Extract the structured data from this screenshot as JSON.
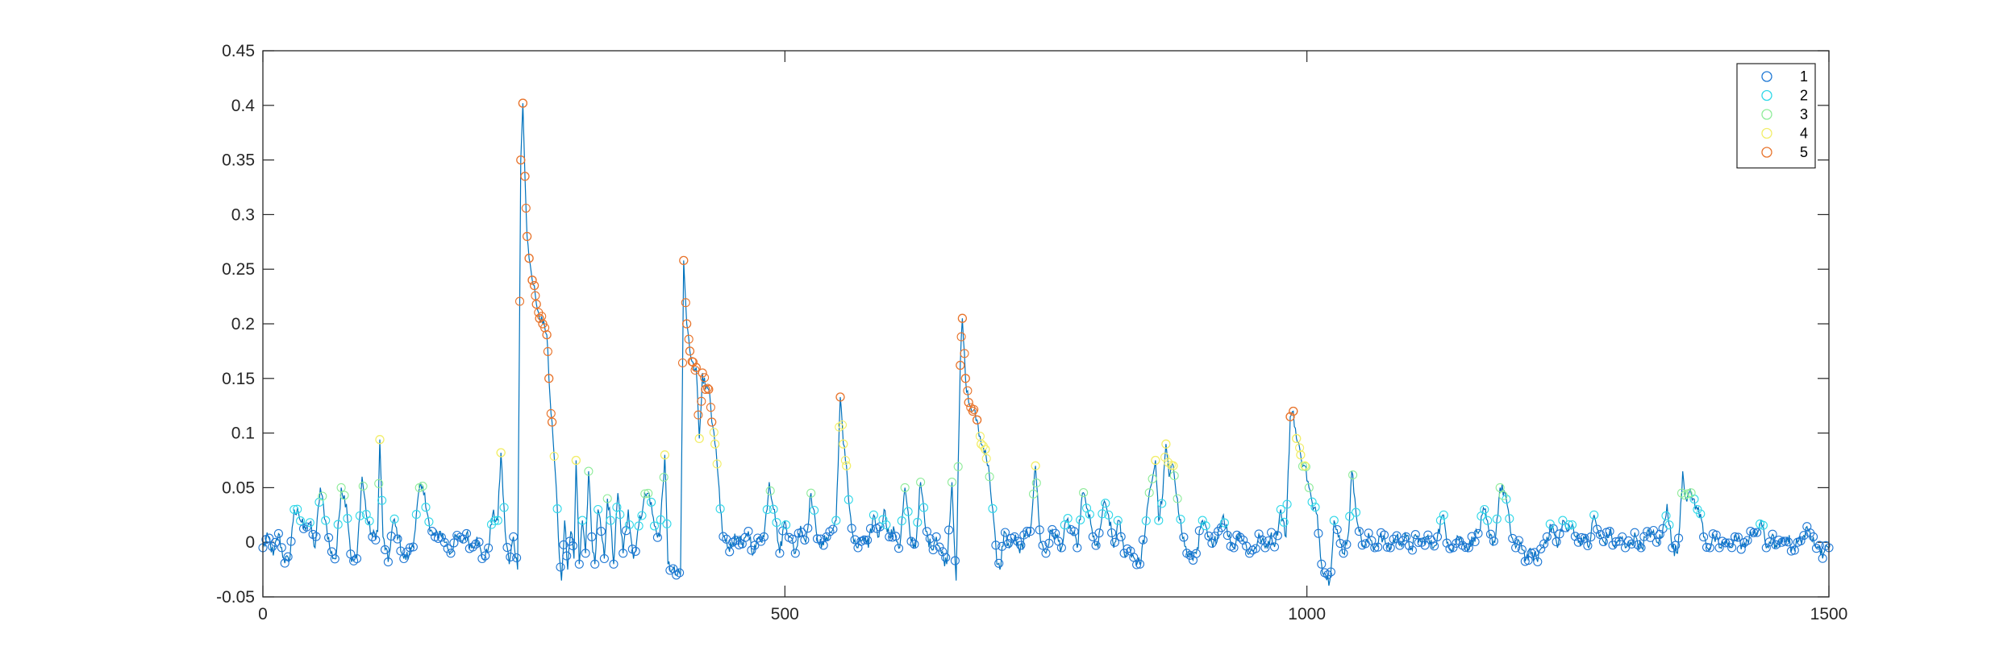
{
  "chart_data": {
    "type": "line",
    "title": "",
    "xlabel": "",
    "ylabel": "",
    "xlim": [
      0,
      1500
    ],
    "ylim": [
      -0.05,
      0.45
    ],
    "x_ticks": [
      0,
      500,
      1000,
      1500
    ],
    "x_tick_labels": [
      "0",
      "500",
      "1000",
      "1500"
    ],
    "y_ticks": [
      -0.05,
      0,
      0.05,
      0.1,
      0.15,
      0.2,
      0.25,
      0.3,
      0.35,
      0.4,
      0.45
    ],
    "y_tick_labels": [
      "-0.05",
      "0",
      "0.05",
      "0.1",
      "0.15",
      "0.2",
      "0.25",
      "0.3",
      "0.35",
      "0.4",
      "0.45"
    ],
    "grid": false,
    "legend_position": "top-right",
    "line_color": "#0072BD",
    "series": [
      {
        "name": "1",
        "marker": "circle",
        "color": "#1f78d4"
      },
      {
        "name": "2",
        "marker": "circle",
        "color": "#2fd8e8"
      },
      {
        "name": "3",
        "marker": "circle",
        "color": "#8fec9a"
      },
      {
        "name": "4",
        "marker": "circle",
        "color": "#f2ee6a"
      },
      {
        "name": "5",
        "marker": "circle",
        "color": "#e8742c"
      }
    ],
    "class_thresholds": [
      0.015,
      0.04,
      0.07,
      0.11
    ],
    "signal": [
      [
        0,
        -0.005
      ],
      [
        5,
        0.005
      ],
      [
        10,
        -0.012
      ],
      [
        15,
        0.008
      ],
      [
        20,
        -0.015
      ],
      [
        25,
        -0.018
      ],
      [
        30,
        0.03
      ],
      [
        35,
        0.022
      ],
      [
        40,
        0.015
      ],
      [
        45,
        0.018
      ],
      [
        50,
        -0.005
      ],
      [
        55,
        0.05
      ],
      [
        60,
        0.02
      ],
      [
        65,
        -0.01
      ],
      [
        70,
        -0.015
      ],
      [
        75,
        0.05
      ],
      [
        80,
        0.035
      ],
      [
        85,
        -0.018
      ],
      [
        90,
        -0.015
      ],
      [
        95,
        0.06
      ],
      [
        100,
        0.02
      ],
      [
        105,
        0.005
      ],
      [
        110,
        0.01
      ],
      [
        112,
        0.094
      ],
      [
        115,
        0.005
      ],
      [
        120,
        -0.018
      ],
      [
        125,
        0.02
      ],
      [
        130,
        0.005
      ],
      [
        135,
        -0.015
      ],
      [
        140,
        -0.012
      ],
      [
        145,
        0.005
      ],
      [
        150,
        0.05
      ],
      [
        155,
        0.045
      ],
      [
        160,
        0.01
      ],
      [
        165,
        0.005
      ],
      [
        170,
        0.01
      ],
      [
        175,
        0
      ],
      [
        180,
        -0.01
      ],
      [
        185,
        0.005
      ],
      [
        190,
        0
      ],
      [
        195,
        0.008
      ],
      [
        200,
        -0.005
      ],
      [
        205,
        0.005
      ],
      [
        210,
        -0.015
      ],
      [
        215,
        -0.01
      ],
      [
        220,
        0.025
      ],
      [
        225,
        0.02
      ],
      [
        228,
        0.082
      ],
      [
        232,
        0.01
      ],
      [
        236,
        -0.02
      ],
      [
        240,
        0.005
      ],
      [
        244,
        -0.025
      ],
      [
        247,
        0.35
      ],
      [
        249,
        0.402
      ],
      [
        251,
        0.335
      ],
      [
        253,
        0.28
      ],
      [
        255,
        0.26
      ],
      [
        258,
        0.24
      ],
      [
        260,
        0.235
      ],
      [
        262,
        0.218
      ],
      [
        265,
        0.205
      ],
      [
        268,
        0.2
      ],
      [
        272,
        0.19
      ],
      [
        274,
        0.15
      ],
      [
        277,
        0.11
      ],
      [
        280,
        0.065
      ],
      [
        283,
        0.005
      ],
      [
        286,
        -0.035
      ],
      [
        289,
        0.02
      ],
      [
        292,
        -0.025
      ],
      [
        295,
        0.01
      ],
      [
        298,
        -0.015
      ],
      [
        300,
        0.075
      ],
      [
        303,
        -0.02
      ],
      [
        306,
        0.02
      ],
      [
        309,
        -0.01
      ],
      [
        312,
        0.065
      ],
      [
        315,
        0.005
      ],
      [
        318,
        -0.02
      ],
      [
        321,
        0.03
      ],
      [
        324,
        0.01
      ],
      [
        327,
        -0.015
      ],
      [
        330,
        0.04
      ],
      [
        333,
        0.02
      ],
      [
        336,
        -0.02
      ],
      [
        340,
        0.045
      ],
      [
        345,
        -0.01
      ],
      [
        350,
        0.03
      ],
      [
        355,
        -0.015
      ],
      [
        360,
        0.015
      ],
      [
        365,
        0.04
      ],
      [
        370,
        0.045
      ],
      [
        375,
        0.015
      ],
      [
        380,
        0.005
      ],
      [
        385,
        0.08
      ],
      [
        388,
        -0.02
      ],
      [
        392,
        -0.025
      ],
      [
        396,
        -0.03
      ],
      [
        400,
        -0.03
      ],
      [
        403,
        0.258
      ],
      [
        406,
        0.2
      ],
      [
        409,
        0.175
      ],
      [
        412,
        0.165
      ],
      [
        415,
        0.16
      ],
      [
        418,
        0.095
      ],
      [
        421,
        0.155
      ],
      [
        424,
        0.14
      ],
      [
        427,
        0.14
      ],
      [
        430,
        0.11
      ],
      [
        433,
        0.09
      ],
      [
        436,
        0.06
      ],
      [
        440,
        0.01
      ],
      [
        445,
        -0.005
      ],
      [
        450,
        0
      ],
      [
        455,
        0.005
      ],
      [
        460,
        -0.005
      ],
      [
        465,
        0.01
      ],
      [
        470,
        -0.01
      ],
      [
        475,
        0.005
      ],
      [
        480,
        0.005
      ],
      [
        485,
        0.055
      ],
      [
        490,
        0.03
      ],
      [
        495,
        -0.01
      ],
      [
        500,
        0.02
      ],
      [
        505,
        0.005
      ],
      [
        510,
        -0.01
      ],
      [
        515,
        0.015
      ],
      [
        520,
        0
      ],
      [
        525,
        0.045
      ],
      [
        530,
        0.01
      ],
      [
        535,
        -0.005
      ],
      [
        540,
        0.005
      ],
      [
        545,
        0.01
      ],
      [
        549,
        0.02
      ],
      [
        553,
        0.133
      ],
      [
        556,
        0.09
      ],
      [
        559,
        0.07
      ],
      [
        562,
        0.03
      ],
      [
        566,
        0
      ],
      [
        570,
        -0.005
      ],
      [
        575,
        0.005
      ],
      [
        580,
        -0.005
      ],
      [
        585,
        0.025
      ],
      [
        590,
        0.005
      ],
      [
        595,
        0.03
      ],
      [
        600,
        0.005
      ],
      [
        605,
        0.01
      ],
      [
        610,
        -0.005
      ],
      [
        615,
        0.05
      ],
      [
        620,
        0.005
      ],
      [
        625,
        -0.005
      ],
      [
        630,
        0.055
      ],
      [
        635,
        0.01
      ],
      [
        640,
        -0.005
      ],
      [
        645,
        0.005
      ],
      [
        650,
        -0.01
      ],
      [
        655,
        -0.02
      ],
      [
        660,
        0.055
      ],
      [
        664,
        -0.035
      ],
      [
        668,
        0.162
      ],
      [
        670,
        0.205
      ],
      [
        673,
        0.15
      ],
      [
        676,
        0.128
      ],
      [
        680,
        0.12
      ],
      [
        684,
        0.112
      ],
      [
        688,
        0.09
      ],
      [
        692,
        0.085
      ],
      [
        696,
        0.06
      ],
      [
        700,
        0.02
      ],
      [
        703,
        -0.02
      ],
      [
        706,
        -0.025
      ],
      [
        710,
        0.01
      ],
      [
        715,
        -0.005
      ],
      [
        720,
        0.005
      ],
      [
        725,
        -0.01
      ],
      [
        730,
        0.005
      ],
      [
        735,
        0.01
      ],
      [
        740,
        0.07
      ],
      [
        745,
        0
      ],
      [
        750,
        -0.01
      ],
      [
        755,
        0.01
      ],
      [
        760,
        0.005
      ],
      [
        765,
        -0.005
      ],
      [
        770,
        0.02
      ],
      [
        775,
        0.01
      ],
      [
        780,
        -0.005
      ],
      [
        785,
        0.045
      ],
      [
        790,
        0.03
      ],
      [
        795,
        0.005
      ],
      [
        800,
        -0.005
      ],
      [
        805,
        0.035
      ],
      [
        810,
        0.025
      ],
      [
        815,
        -0.005
      ],
      [
        820,
        0.02
      ],
      [
        825,
        -0.01
      ],
      [
        830,
        -0.005
      ],
      [
        835,
        -0.015
      ],
      [
        840,
        -0.02
      ],
      [
        845,
        0.01
      ],
      [
        850,
        0.05
      ],
      [
        855,
        0.075
      ],
      [
        858,
        0.02
      ],
      [
        862,
        0.045
      ],
      [
        865,
        0.09
      ],
      [
        868,
        0.06
      ],
      [
        872,
        0.07
      ],
      [
        876,
        0.04
      ],
      [
        880,
        0.01
      ],
      [
        885,
        -0.01
      ],
      [
        890,
        -0.015
      ],
      [
        895,
        -0.005
      ],
      [
        900,
        0.02
      ],
      [
        905,
        0.005
      ],
      [
        910,
        -0.005
      ],
      [
        915,
        0.01
      ],
      [
        920,
        0.025
      ],
      [
        925,
        0.005
      ],
      [
        930,
        -0.005
      ],
      [
        935,
        0.01
      ],
      [
        940,
        0
      ],
      [
        945,
        -0.01
      ],
      [
        950,
        -0.005
      ],
      [
        955,
        0.005
      ],
      [
        960,
        -0.005
      ],
      [
        965,
        0.005
      ],
      [
        970,
        0
      ],
      [
        975,
        0.03
      ],
      [
        980,
        0.005
      ],
      [
        984,
        0.115
      ],
      [
        987,
        0.12
      ],
      [
        990,
        0.095
      ],
      [
        994,
        0.08
      ],
      [
        998,
        0.07
      ],
      [
        1002,
        0.05
      ],
      [
        1006,
        0.03
      ],
      [
        1010,
        0.025
      ],
      [
        1014,
        -0.02
      ],
      [
        1018,
        -0.03
      ],
      [
        1022,
        -0.035
      ],
      [
        1026,
        0.02
      ],
      [
        1030,
        0.005
      ],
      [
        1035,
        -0.01
      ],
      [
        1040,
        0.01
      ],
      [
        1043,
        0.065
      ],
      [
        1046,
        0.04
      ],
      [
        1050,
        0.01
      ],
      [
        1055,
        -0.005
      ],
      [
        1060,
        0.005
      ],
      [
        1065,
        -0.005
      ],
      [
        1070,
        0.005
      ],
      [
        1075,
        0
      ],
      [
        1080,
        -0.005
      ],
      [
        1085,
        0.005
      ],
      [
        1090,
        0
      ],
      [
        1095,
        0.005
      ],
      [
        1100,
        -0.005
      ],
      [
        1105,
        0.005
      ],
      [
        1110,
        0
      ],
      [
        1115,
        0.005
      ],
      [
        1120,
        -0.005
      ],
      [
        1125,
        0.005
      ],
      [
        1130,
        0.025
      ],
      [
        1135,
        0
      ],
      [
        1140,
        -0.005
      ],
      [
        1145,
        0.005
      ],
      [
        1150,
        0
      ],
      [
        1155,
        -0.005
      ],
      [
        1160,
        0.005
      ],
      [
        1165,
        0.01
      ],
      [
        1170,
        0.03
      ],
      [
        1175,
        0.005
      ],
      [
        1180,
        0
      ],
      [
        1185,
        0.05
      ],
      [
        1190,
        0.045
      ],
      [
        1195,
        0.01
      ],
      [
        1200,
        -0.005
      ],
      [
        1205,
        0
      ],
      [
        1210,
        -0.015
      ],
      [
        1215,
        -0.01
      ],
      [
        1220,
        -0.015
      ],
      [
        1225,
        -0.005
      ],
      [
        1230,
        0.005
      ],
      [
        1235,
        0.015
      ],
      [
        1240,
        -0.005
      ],
      [
        1245,
        0.02
      ],
      [
        1250,
        0.01
      ],
      [
        1255,
        0.015
      ],
      [
        1260,
        0
      ],
      [
        1265,
        0.005
      ],
      [
        1270,
        -0.005
      ],
      [
        1275,
        0.025
      ],
      [
        1280,
        0.005
      ],
      [
        1285,
        0
      ],
      [
        1290,
        0.01
      ],
      [
        1295,
        -0.005
      ],
      [
        1300,
        0.005
      ],
      [
        1305,
        -0.005
      ],
      [
        1310,
        0
      ],
      [
        1315,
        0.005
      ],
      [
        1320,
        -0.005
      ],
      [
        1325,
        0.005
      ],
      [
        1330,
        0.01
      ],
      [
        1335,
        0
      ],
      [
        1340,
        0.005
      ],
      [
        1345,
        0.035
      ],
      [
        1350,
        -0.005
      ],
      [
        1355,
        -0.01
      ],
      [
        1360,
        0.065
      ],
      [
        1363,
        0.04
      ],
      [
        1366,
        0.045
      ],
      [
        1370,
        0.04
      ],
      [
        1374,
        0.03
      ],
      [
        1378,
        0.02
      ],
      [
        1382,
        0
      ],
      [
        1386,
        -0.005
      ],
      [
        1390,
        0.005
      ],
      [
        1395,
        -0.005
      ],
      [
        1400,
        0
      ],
      [
        1405,
        -0.005
      ],
      [
        1410,
        0.005
      ],
      [
        1415,
        0
      ],
      [
        1420,
        -0.005
      ],
      [
        1425,
        0.01
      ],
      [
        1430,
        0.005
      ],
      [
        1435,
        0.02
      ],
      [
        1440,
        -0.005
      ],
      [
        1445,
        0.005
      ],
      [
        1450,
        -0.005
      ],
      [
        1455,
        0
      ],
      [
        1460,
        0.005
      ],
      [
        1465,
        -0.005
      ],
      [
        1470,
        0
      ],
      [
        1475,
        0.005
      ],
      [
        1480,
        0.01
      ],
      [
        1485,
        0.005
      ],
      [
        1490,
        -0.005
      ],
      [
        1495,
        -0.01
      ],
      [
        1500,
        -0.005
      ]
    ]
  }
}
